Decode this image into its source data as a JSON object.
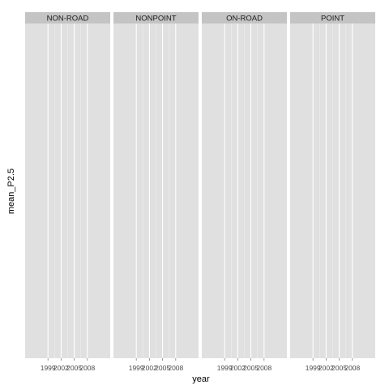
{
  "chart_data": {
    "type": "line",
    "facet_by": "type",
    "facets": [
      "NON-ROAD",
      "NONPOINT",
      "ON-ROAD",
      "POINT"
    ],
    "x": [
      1999,
      2002,
      2005,
      2008
    ],
    "xticks": [
      "1999",
      "2002",
      "2005",
      "2008"
    ],
    "xlabel": "year",
    "ylabel": "mean_P2.5",
    "series": [],
    "grid": true,
    "colors": {
      "panel_background": "#e0e0e0",
      "strip_background": "#c4c4c4",
      "grid": "#ffffff",
      "page_background": "#ffffff"
    }
  }
}
